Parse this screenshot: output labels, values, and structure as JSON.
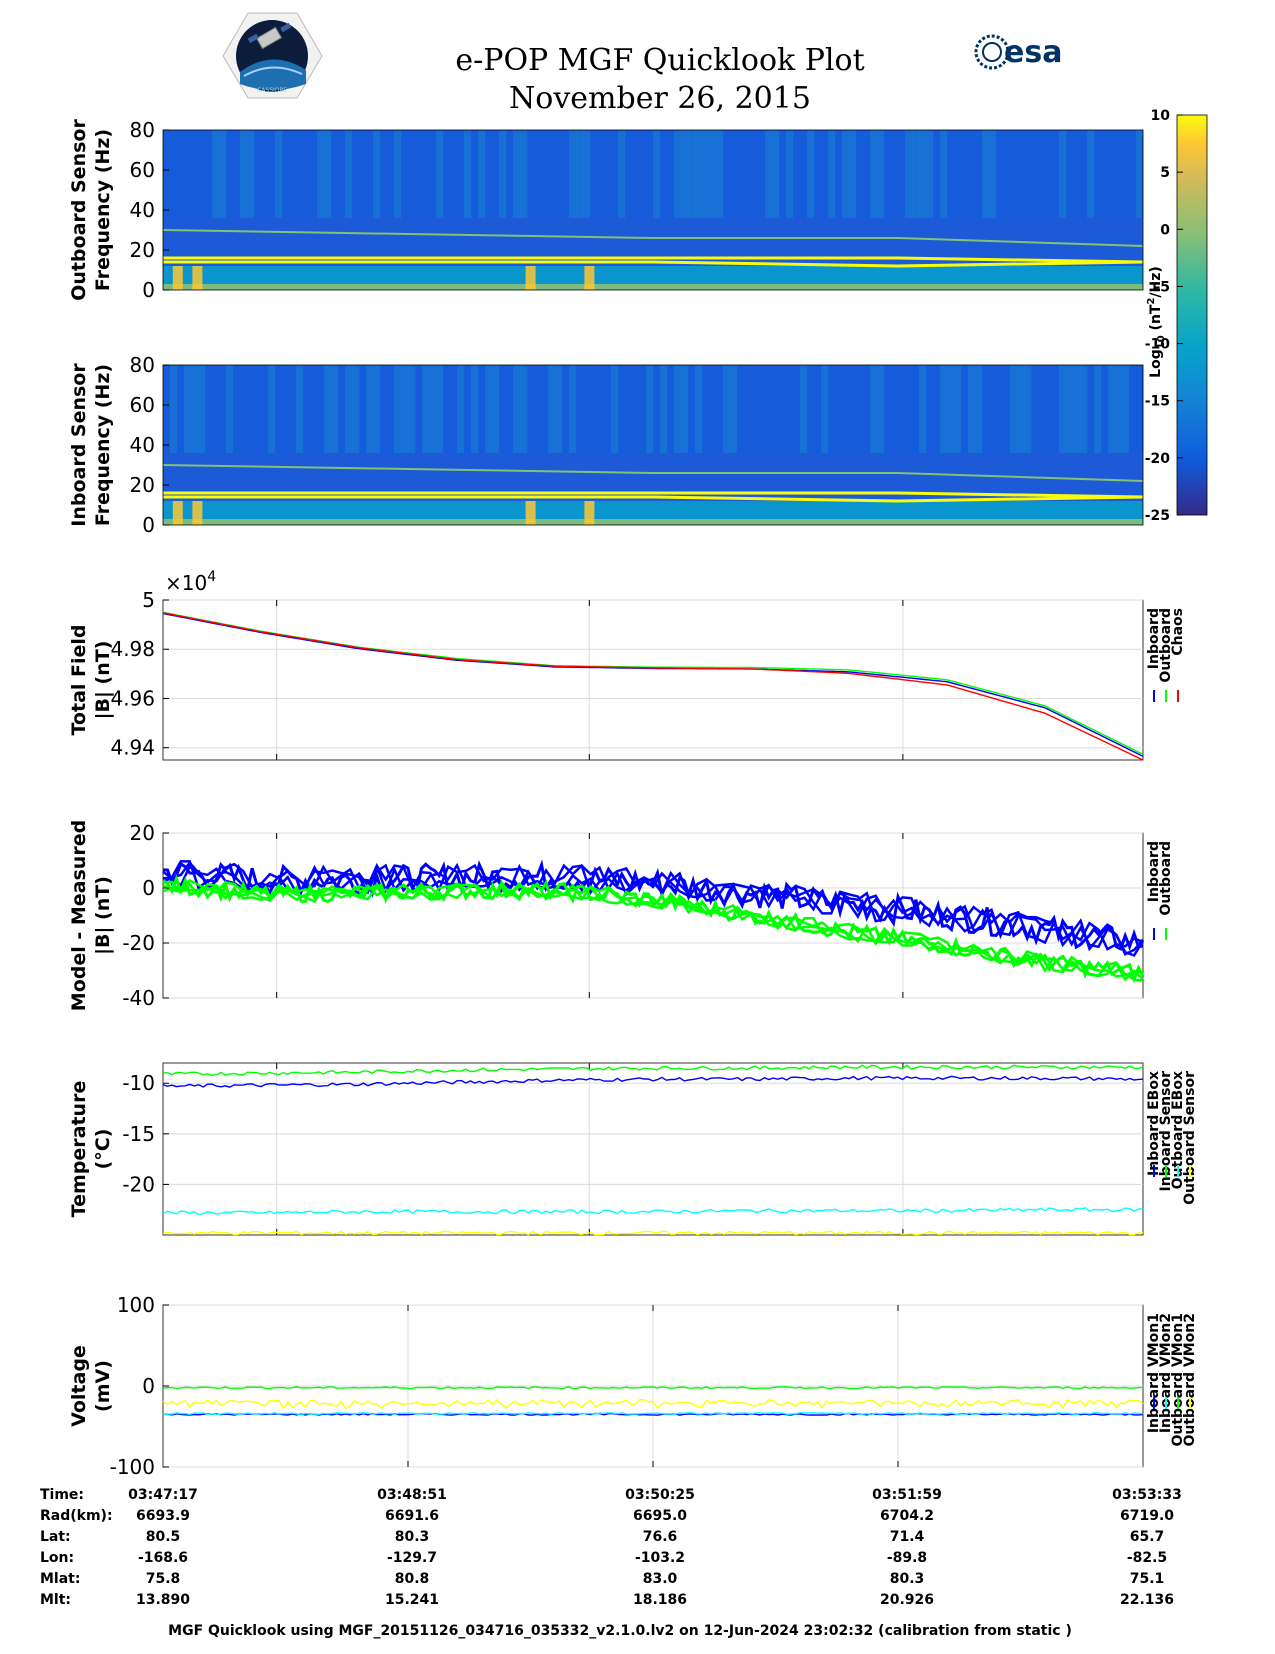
{
  "header": {
    "title": "e-POP MGF Quicklook Plot",
    "date": "November 26, 2015",
    "left_logo_text": "CASSIOPE",
    "right_logo_text": "esa"
  },
  "footer": {
    "caption": "MGF Quicklook using MGF_20151126_034716_035332_v2.1.0.lv2 on 12-Jun-2024 23:02:32 (calibration from static )"
  },
  "colorbar": {
    "label_main": "Log",
    "label_sub": "10",
    "label_rest": " (nT",
    "label_sup": "2",
    "label_end": "/Hz)",
    "ticks": [
      10,
      5,
      0,
      -5,
      -10,
      -15,
      -20,
      -25
    ]
  },
  "ephemeris": {
    "labels": [
      "Time:",
      "Rad(km):",
      "Lat:",
      "Lon:",
      "Mlat:",
      "Mlt:"
    ],
    "columns": [
      [
        "03:47:17",
        "6693.9",
        "80.5",
        "-168.6",
        "75.8",
        "13.890"
      ],
      [
        "03:48:51",
        "6691.6",
        "80.3",
        "-129.7",
        "80.8",
        "15.241"
      ],
      [
        "03:50:25",
        "6695.0",
        "76.6",
        "-103.2",
        "83.0",
        "18.186"
      ],
      [
        "03:51:59",
        "6704.2",
        "71.4",
        "-89.8",
        "80.3",
        "20.926"
      ],
      [
        "03:53:33",
        "6719.0",
        "65.7",
        "-82.5",
        "75.1",
        "22.136"
      ]
    ]
  },
  "colors": {
    "blue": "#0000ff",
    "green": "#00ff00",
    "red": "#ff0000",
    "cyan": "#00ffff",
    "yellow": "#ffff00"
  },
  "chart_data": [
    {
      "type": "heatmap",
      "id": "outboard-spectrogram",
      "ylabel": [
        "Outboard Sensor",
        "Frequency (Hz)"
      ],
      "ylim": [
        0,
        80
      ],
      "yticks": [
        0,
        20,
        40,
        60,
        80
      ],
      "lines_hz": [
        30,
        16,
        14
      ],
      "colormap": "parula",
      "clim": [
        -25,
        10
      ]
    },
    {
      "type": "heatmap",
      "id": "inboard-spectrogram",
      "ylabel": [
        "Inboard Sensor",
        "Frequency (Hz)"
      ],
      "ylim": [
        0,
        80
      ],
      "yticks": [
        0,
        20,
        40,
        60,
        80
      ],
      "lines_hz": [
        30,
        16,
        14
      ],
      "colormap": "parula",
      "clim": [
        -25,
        10
      ]
    },
    {
      "type": "line",
      "id": "total-field",
      "ylabel": [
        "Total Field",
        "|B| (nT)"
      ],
      "exponent_label": "×10",
      "exponent": "4",
      "ylim": [
        4.935,
        5.0
      ],
      "yticks": [
        4.94,
        4.96,
        4.98,
        5
      ],
      "ytick_labels": [
        "4.94",
        "4.96",
        "4.98",
        "5"
      ],
      "x": [
        0,
        0.1,
        0.2,
        0.3,
        0.4,
        0.5,
        0.6,
        0.7,
        0.8,
        0.9,
        1.0
      ],
      "series": [
        {
          "name": "Inboard",
          "color": "#0000ff",
          "values": [
            4.9945,
            4.9868,
            4.9802,
            4.9755,
            4.9728,
            4.9722,
            4.972,
            4.9708,
            4.9668,
            4.9562,
            4.9365
          ]
        },
        {
          "name": "Outboard",
          "color": "#00ff00",
          "values": [
            4.995,
            4.9873,
            4.9808,
            4.9762,
            4.9733,
            4.9727,
            4.9726,
            4.9716,
            4.9676,
            4.957,
            4.9373
          ]
        },
        {
          "name": "Chaos",
          "color": "#ff0000",
          "values": [
            4.9948,
            4.9871,
            4.9806,
            4.9758,
            4.9731,
            4.9724,
            4.972,
            4.9702,
            4.9655,
            4.954,
            4.935
          ]
        }
      ],
      "legend": [
        "Inboard",
        "Outboard",
        "Chaos"
      ]
    },
    {
      "type": "line",
      "id": "model-measured",
      "ylabel": [
        "Model - Measured",
        "|B| (nT)"
      ],
      "ylim": [
        -40,
        20
      ],
      "yticks": [
        -40,
        -20,
        0,
        20
      ],
      "x": [
        0,
        0.1,
        0.2,
        0.3,
        0.4,
        0.5,
        0.6,
        0.7,
        0.8,
        0.9,
        1.0
      ],
      "series": [
        {
          "name": "Inboard",
          "color": "#0000ff",
          "values": [
            6,
            3,
            3,
            4,
            4,
            2,
            -2,
            -6,
            -10,
            -15,
            -20
          ],
          "spread": 5
        },
        {
          "name": "Outboard",
          "color": "#00ff00",
          "values": [
            1,
            -2,
            -2,
            -1,
            -1,
            -4,
            -10,
            -16,
            -21,
            -27,
            -31
          ],
          "spread": 3
        }
      ],
      "legend": [
        "Inboard",
        "Outboard"
      ]
    },
    {
      "type": "line",
      "id": "temperature",
      "ylabel": [
        "Temperature",
        "(°C)"
      ],
      "ylim": [
        -25,
        -8
      ],
      "yticks": [
        -20,
        -15,
        -10
      ],
      "x": [
        0,
        0.1,
        0.2,
        0.3,
        0.4,
        0.5,
        0.6,
        0.7,
        0.8,
        0.9,
        1.0
      ],
      "series": [
        {
          "name": "Inboard EBox",
          "color": "#0000ff",
          "values": [
            -10.3,
            -10.2,
            -10.1,
            -9.9,
            -9.7,
            -9.6,
            -9.6,
            -9.5,
            -9.5,
            -9.5,
            -9.6
          ]
        },
        {
          "name": "Inboard Sensor",
          "color": "#00ff00",
          "values": [
            -9.1,
            -9.0,
            -8.9,
            -8.7,
            -8.6,
            -8.5,
            -8.5,
            -8.4,
            -8.4,
            -8.4,
            -8.4
          ]
        },
        {
          "name": "Outboard EBox",
          "color": "#00ffff",
          "values": [
            -22.8,
            -22.8,
            -22.7,
            -22.7,
            -22.7,
            -22.7,
            -22.6,
            -22.6,
            -22.6,
            -22.5,
            -22.5
          ]
        },
        {
          "name": "Outboard Sensor",
          "color": "#ffff00",
          "values": [
            -24.8,
            -24.8,
            -24.8,
            -24.8,
            -24.8,
            -24.8,
            -24.8,
            -24.8,
            -24.8,
            -24.8,
            -24.8
          ]
        }
      ],
      "legend": [
        "Inboard EBox",
        "Inboard Sensor",
        "Outboard EBox",
        "Outboard Sensor"
      ]
    },
    {
      "type": "line",
      "id": "voltage",
      "ylabel": [
        "Voltage",
        "(mV)"
      ],
      "ylim": [
        -100,
        100
      ],
      "yticks": [
        -100,
        0,
        100
      ],
      "xticks": [
        "03:47:17",
        "03:48:51",
        "03:50:25",
        "03:51:59",
        "03:53:33"
      ],
      "x": [
        0,
        0.1,
        0.2,
        0.3,
        0.4,
        0.5,
        0.6,
        0.7,
        0.8,
        0.9,
        1.0
      ],
      "series": [
        {
          "name": "Inboard VMon1",
          "color": "#0000ff",
          "values": [
            -35,
            -35,
            -35,
            -35,
            -35,
            -35,
            -35,
            -35,
            -35,
            -35,
            -35
          ]
        },
        {
          "name": "Inboard VMon2",
          "color": "#00ffff",
          "values": [
            -34,
            -34,
            -34,
            -34,
            -34,
            -34,
            -34,
            -34,
            -34,
            -34,
            -34
          ]
        },
        {
          "name": "Outboard VMon1",
          "color": "#00ff00",
          "values": [
            -2,
            -2,
            -2,
            -2,
            -2,
            -2,
            -2,
            -2,
            -2,
            -2,
            -2
          ]
        },
        {
          "name": "Outboard VMon2",
          "color": "#ffff00",
          "values": [
            -20,
            -20,
            -20,
            -20,
            -20,
            -20,
            -20,
            -20,
            -20,
            -20,
            -20
          ]
        }
      ],
      "legend": [
        "Inboard VMon1",
        "Inboard VMon2",
        "Outboard VMon1",
        "Outboard VMon2"
      ]
    }
  ]
}
